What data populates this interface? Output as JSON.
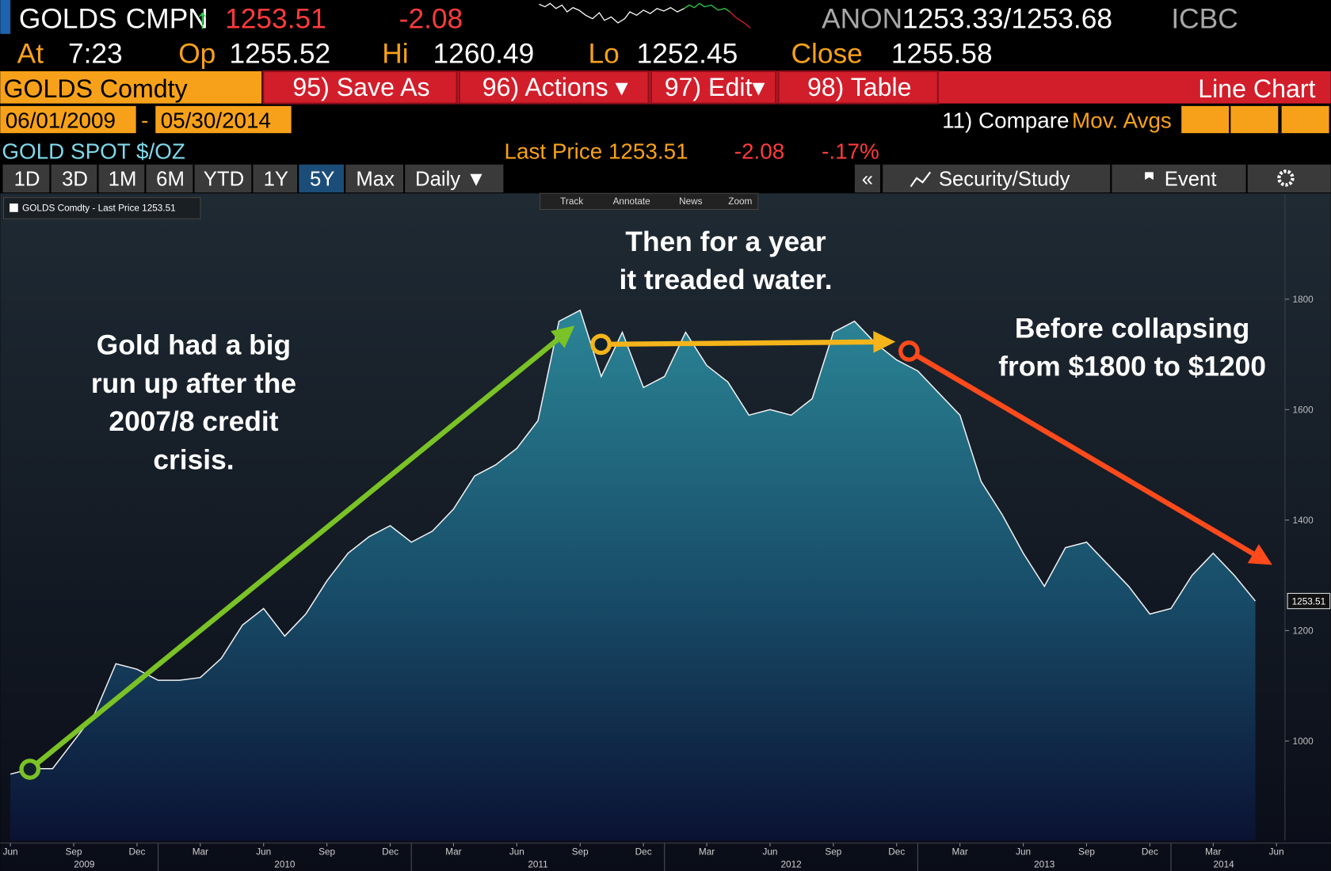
{
  "header": {
    "ticker": "GOLDS",
    "source": "CMPN",
    "arrow": "↑",
    "price": "1253.51",
    "change": "-2.08",
    "dealer": "ANON",
    "bid_ask": "1253.33/1253.68",
    "bank": "ICBC",
    "time_label": "At",
    "time": "7:23",
    "open_label": "Op",
    "open": "1255.52",
    "high_label": "Hi",
    "high": "1260.49",
    "low_label": "Lo",
    "low": "1252.45",
    "close_label": "Close",
    "close": "1255.58"
  },
  "menu": {
    "security": "GOLDS Comdty",
    "buttons": [
      "95) Save As",
      "96) Actions ▾",
      "97) Edit▾",
      "98) Table"
    ],
    "view": "Line Chart"
  },
  "range": {
    "start": "06/01/2009",
    "separator": "-",
    "end": "05/30/2014",
    "compare": "11) Compare",
    "moving_averages": "Mov. Avgs"
  },
  "quote": {
    "name": "GOLD SPOT $/OZ",
    "last": "Last Price 1253.51",
    "change": "-2.08",
    "percent": "-.17%"
  },
  "toolbar": {
    "periods": [
      "1D",
      "3D",
      "1M",
      "6M",
      "YTD",
      "1Y",
      "5Y",
      "Max"
    ],
    "frequency": "Daily ▼",
    "collapse": "«",
    "study": "Security/Study",
    "event": "Event"
  },
  "chart_tools": [
    "Track",
    "Annotate",
    "News",
    "Zoom"
  ],
  "legend": "GOLDS Comdty - Last Price 1253.51",
  "chart_data": {
    "type": "area",
    "x": [
      "2009-06",
      "2009-07",
      "2009-08",
      "2009-09",
      "2009-10",
      "2009-11",
      "2009-12",
      "2010-01",
      "2010-02",
      "2010-03",
      "2010-04",
      "2010-05",
      "2010-06",
      "2010-07",
      "2010-08",
      "2010-09",
      "2010-10",
      "2010-11",
      "2010-12",
      "2011-01",
      "2011-02",
      "2011-03",
      "2011-04",
      "2011-05",
      "2011-06",
      "2011-07",
      "2011-08",
      "2011-09",
      "2011-10",
      "2011-11",
      "2011-12",
      "2012-01",
      "2012-02",
      "2012-03",
      "2012-04",
      "2012-05",
      "2012-06",
      "2012-07",
      "2012-08",
      "2012-09",
      "2012-10",
      "2012-11",
      "2012-12",
      "2013-01",
      "2013-02",
      "2013-03",
      "2013-04",
      "2013-05",
      "2013-06",
      "2013-07",
      "2013-08",
      "2013-09",
      "2013-10",
      "2013-11",
      "2013-12",
      "2014-01",
      "2014-02",
      "2014-03",
      "2014-04",
      "2014-05"
    ],
    "values": [
      940,
      950,
      950,
      1000,
      1050,
      1140,
      1130,
      1110,
      1110,
      1115,
      1150,
      1210,
      1240,
      1190,
      1230,
      1290,
      1340,
      1370,
      1390,
      1360,
      1380,
      1420,
      1480,
      1500,
      1530,
      1580,
      1760,
      1780,
      1660,
      1740,
      1640,
      1660,
      1740,
      1680,
      1650,
      1590,
      1600,
      1590,
      1620,
      1740,
      1760,
      1720,
      1690,
      1670,
      1630,
      1590,
      1470,
      1410,
      1340,
      1280,
      1350,
      1360,
      1320,
      1280,
      1230,
      1240,
      1300,
      1340,
      1300,
      1253.51
    ],
    "ylim": [
      820,
      1990
    ],
    "yticks": [
      1000,
      1200,
      1400,
      1600,
      1800
    ],
    "xlim": [
      "2009-06",
      "2014-06"
    ],
    "xticks": [
      {
        "value": "2009-06",
        "label": "Jun"
      },
      {
        "value": "2009-09",
        "label": "Sep"
      },
      {
        "value": "2009-12",
        "label": "Dec"
      },
      {
        "value": "2010-03",
        "label": "Mar"
      },
      {
        "value": "2010-06",
        "label": "Jun"
      },
      {
        "value": "2010-09",
        "label": "Sep"
      },
      {
        "value": "2010-12",
        "label": "Dec"
      },
      {
        "value": "2011-03",
        "label": "Mar"
      },
      {
        "value": "2011-06",
        "label": "Jun"
      },
      {
        "value": "2011-09",
        "label": "Sep"
      },
      {
        "value": "2011-12",
        "label": "Dec"
      },
      {
        "value": "2012-03",
        "label": "Mar"
      },
      {
        "value": "2012-06",
        "label": "Jun"
      },
      {
        "value": "2012-09",
        "label": "Sep"
      },
      {
        "value": "2012-12",
        "label": "Dec"
      },
      {
        "value": "2013-03",
        "label": "Mar"
      },
      {
        "value": "2013-06",
        "label": "Jun"
      },
      {
        "value": "2013-09",
        "label": "Sep"
      },
      {
        "value": "2013-12",
        "label": "Dec"
      },
      {
        "value": "2014-03",
        "label": "Mar"
      },
      {
        "value": "2014-06",
        "label": "Jun"
      }
    ],
    "years": [
      "2009",
      "2010",
      "2011",
      "2012",
      "2013",
      "2014"
    ],
    "annotations": [
      {
        "lines": [
          "Gold had a big",
          "run up after the",
          "2007/8 credit",
          "crisis."
        ]
      },
      {
        "lines": [
          "Then for a year",
          "it treaded water."
        ]
      },
      {
        "lines": [
          "Before collapsing",
          "from $1800 to $1200"
        ]
      }
    ]
  }
}
